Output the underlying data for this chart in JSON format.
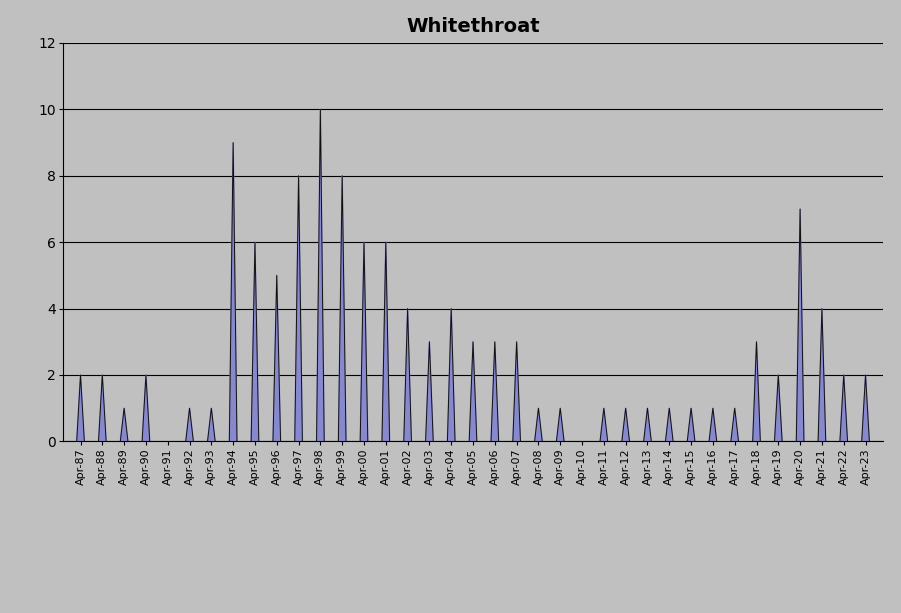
{
  "title": "Whitethroat",
  "labels": [
    "Apr-87",
    "Apr-88",
    "Apr-89",
    "Apr-90",
    "Apr-91",
    "Apr-92",
    "Apr-93",
    "Apr-94",
    "Apr-95",
    "Apr-96",
    "Apr-97",
    "Apr-98",
    "Apr-99",
    "Apr-00",
    "Apr-01",
    "Apr-02",
    "Apr-03",
    "Apr-04",
    "Apr-05",
    "Apr-06",
    "Apr-07",
    "Apr-08",
    "Apr-09",
    "Apr-10",
    "Apr-11",
    "Apr-12",
    "Apr-13",
    "Apr-14",
    "Apr-15",
    "Apr-16",
    "Apr-17",
    "Apr-18",
    "Apr-19",
    "Apr-20",
    "Apr-21",
    "Apr-22",
    "Apr-23"
  ],
  "values": [
    2,
    2,
    1,
    2,
    0,
    1,
    1,
    9,
    6,
    5,
    8,
    10,
    8,
    6,
    6,
    4,
    3,
    4,
    3,
    3,
    3,
    1,
    1,
    0,
    1,
    1,
    1,
    1,
    1,
    1,
    1,
    3,
    2,
    7,
    4,
    2,
    2
  ],
  "fill_color": "#8888cc",
  "line_color": "#111111",
  "background_color": "#c0c0c0",
  "ylim": [
    0,
    12
  ],
  "yticks": [
    0,
    2,
    4,
    6,
    8,
    10,
    12
  ],
  "title_fontsize": 14,
  "tick_fontsize": 8,
  "bar_width": 0.35
}
